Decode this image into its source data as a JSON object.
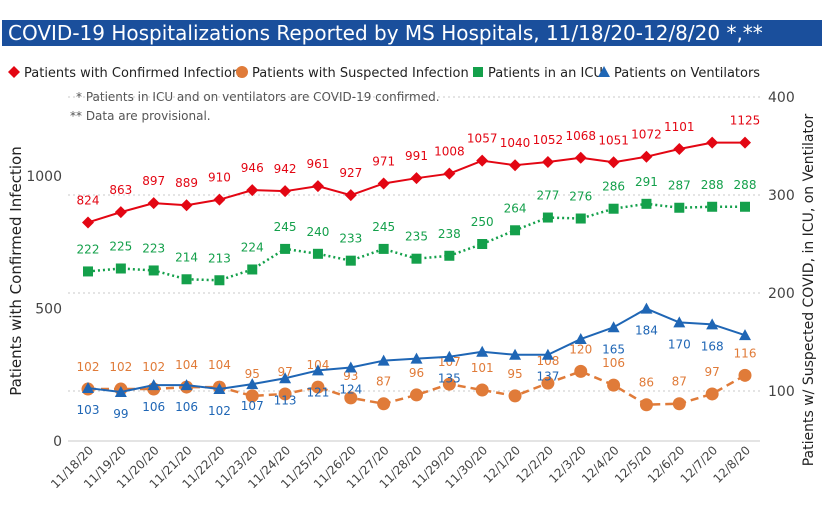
{
  "title": "COVID-19 Hospitalizations Reported by MS Hospitals, 11/18/20-12/8/20 *,**",
  "colors": {
    "title_bg": "#1a4f9c",
    "confirmed": "#e30613",
    "suspected": "#e07b39",
    "icu": "#14a04b",
    "ventilators": "#1f66b5"
  },
  "chart_data": {
    "type": "line",
    "notes": [
      "* Patients in ICU and on ventilators are COVID-19 confirmed.",
      "** Data are provisional."
    ],
    "ylabel_left": "Patients with Confirmed Infection",
    "ylabel_right": "Patients w/ Suspected COVID, in ICU, on Ventilator",
    "ylim_left": [
      0,
      1200
    ],
    "yticks_left": [
      0,
      500,
      1000
    ],
    "ylim_right": [
      0,
      400
    ],
    "yticks_right": [
      100,
      200,
      300,
      400
    ],
    "grid": true,
    "legend_position": "top",
    "categories": [
      "11/18/20",
      "11/19/20",
      "11/20/20",
      "11/21/20",
      "11/22/20",
      "11/23/20",
      "11/24/20",
      "11/25/20",
      "11/26/20",
      "11/27/20",
      "11/28/20",
      "11/29/20",
      "11/30/20",
      "12/1/20",
      "12/2/20",
      "12/3/20",
      "12/4/20",
      "12/5/20",
      "12/6/20",
      "12/7/20",
      "12/8/20"
    ],
    "series": [
      {
        "name": "Patients with Confirmed Infection",
        "axis": "left",
        "marker": "diamond",
        "line": "solid",
        "color": "#e30613",
        "values": [
          824,
          863,
          897,
          889,
          910,
          946,
          942,
          961,
          927,
          971,
          991,
          1008,
          1057,
          1040,
          1052,
          1068,
          1051,
          1072,
          1101,
          1125,
          1125
        ],
        "labels": [
          "824",
          "863",
          "897",
          "889",
          "910",
          "946",
          "942",
          "961",
          "927",
          "971",
          "991",
          "1008",
          "1057",
          "1040",
          "1052",
          "1068",
          "1051",
          "1072",
          "1101",
          "",
          "1125"
        ]
      },
      {
        "name": "Patients with Suspected Infection",
        "axis": "right",
        "marker": "circle",
        "line": "dashed",
        "color": "#e07b39",
        "values": [
          102,
          102,
          102,
          104,
          104,
          95,
          97,
          104,
          93,
          87,
          96,
          107,
          101,
          95,
          108,
          120,
          106,
          86,
          87,
          97,
          116
        ],
        "labels": [
          "102",
          "102",
          "102",
          "104",
          "104",
          "95",
          "97",
          "104",
          "93",
          "87",
          "96",
          "107",
          "101",
          "95",
          "108",
          "120",
          "106",
          "86",
          "87",
          "97",
          "116"
        ]
      },
      {
        "name": "Patients in an ICU",
        "axis": "right",
        "marker": "square",
        "line": "dotted",
        "color": "#14a04b",
        "values": [
          222,
          225,
          223,
          214,
          213,
          224,
          245,
          240,
          233,
          245,
          235,
          238,
          250,
          264,
          277,
          276,
          286,
          291,
          287,
          288,
          288
        ],
        "labels": [
          "222",
          "225",
          "223",
          "214",
          "213",
          "224",
          "245",
          "240",
          "233",
          "245",
          "235",
          "238",
          "250",
          "264",
          "277",
          "276",
          "286",
          "291",
          "287",
          "288",
          "288"
        ]
      },
      {
        "name": "Patients on Ventilators",
        "axis": "right",
        "marker": "triangle",
        "line": "solid",
        "color": "#1f66b5",
        "values": [
          103,
          99,
          106,
          106,
          102,
          107,
          113,
          121,
          124,
          131,
          133,
          135,
          140,
          137,
          137,
          153,
          165,
          184,
          170,
          168,
          157
        ],
        "labels": [
          "103",
          "99",
          "106",
          "106",
          "102",
          "107",
          "113",
          "121",
          "124",
          "",
          "",
          "135",
          "",
          "",
          "137",
          "",
          "165",
          "184",
          "170",
          "168",
          ""
        ]
      }
    ]
  }
}
